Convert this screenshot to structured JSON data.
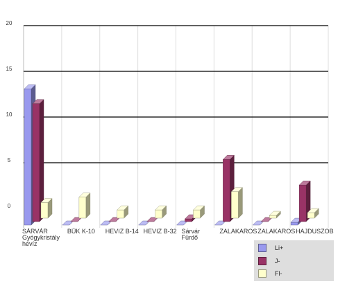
{
  "chart_data": {
    "type": "bar",
    "categories": [
      [
        "SÁRVÁR",
        "Gyógykristály",
        "hévíz"
      ],
      [
        "BÜK K-10"
      ],
      [
        "HEVIZ B-14"
      ],
      [
        "HEVIZ B-32"
      ],
      [
        "Sárvár",
        "Fürdő"
      ],
      [
        "ZALAKAROS"
      ],
      [
        "ZALAKAROS"
      ],
      [
        "HAJDUSZOB"
      ]
    ],
    "series": [
      {
        "name": "Li+",
        "values": [
          14.9,
          0.0,
          0.0,
          0.0,
          0.0,
          0.0,
          0.0,
          0.3
        ],
        "color": "#9999ee"
      },
      {
        "name": "J-",
        "values": [
          12.9,
          0.0,
          0.0,
          0.0,
          0.3,
          6.8,
          0.0,
          4.0
        ],
        "color": "#993366"
      },
      {
        "name": "Fl-",
        "values": [
          1.7,
          2.3,
          0.9,
          0.9,
          0.9,
          2.9,
          0.3,
          0.6
        ],
        "color": "#ffffcc"
      }
    ],
    "yticks": [
      "0",
      "5",
      "10",
      "15",
      "20"
    ],
    "ylim": [
      0,
      20
    ],
    "grid": true,
    "legend_position": "bottom-right"
  }
}
